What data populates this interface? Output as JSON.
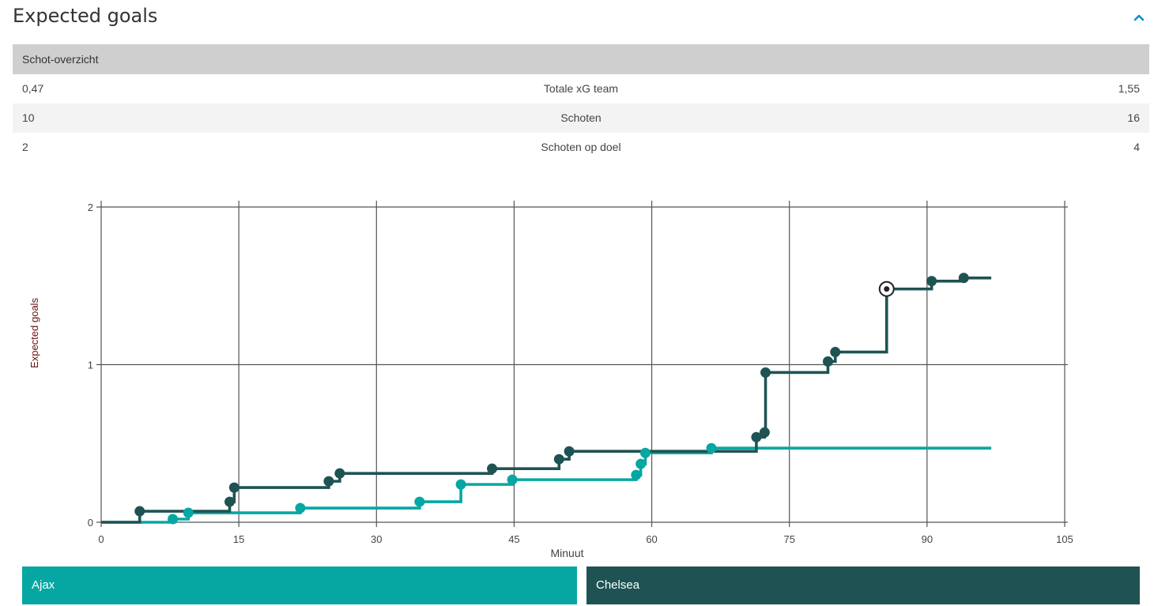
{
  "panel": {
    "title": "Expected goals",
    "collapse_icon": "chevron-up-icon"
  },
  "table": {
    "header": "Schot-overzicht",
    "rows": [
      {
        "left": "0,47",
        "label": "Totale xG team",
        "right": "1,55"
      },
      {
        "left": "10",
        "label": "Schoten",
        "right": "16"
      },
      {
        "left": "2",
        "label": "Schoten op doel",
        "right": "4"
      }
    ]
  },
  "colors": {
    "ajax": "#06a7a3",
    "chelsea": "#1f5353",
    "grid": "#555555",
    "header_bg": "#cfcfcf"
  },
  "chart_data": {
    "type": "line",
    "xlabel": "Minuut",
    "ylabel": "Expected goals",
    "xlim": [
      0,
      105
    ],
    "ylim": [
      0,
      2
    ],
    "xticks": [
      0,
      15,
      30,
      45,
      60,
      75,
      90,
      105
    ],
    "yticks": [
      0,
      1,
      2
    ],
    "grid": true,
    "series": [
      {
        "name": "Ajax",
        "color": "#06a7a3",
        "start": [
          0,
          0
        ],
        "end_x": 97,
        "points": [
          [
            7.8,
            0.02
          ],
          [
            9.5,
            0.06
          ],
          [
            21.7,
            0.09
          ],
          [
            34.7,
            0.13
          ],
          [
            39.2,
            0.24
          ],
          [
            44.8,
            0.27
          ],
          [
            58.3,
            0.3
          ],
          [
            58.8,
            0.37
          ],
          [
            59.3,
            0.44
          ],
          [
            66.5,
            0.47
          ]
        ]
      },
      {
        "name": "Chelsea",
        "color": "#1f5353",
        "start": [
          0,
          0
        ],
        "end_x": 97,
        "points": [
          [
            4.2,
            0.07
          ],
          [
            14.0,
            0.13
          ],
          [
            14.5,
            0.22
          ],
          [
            24.8,
            0.26
          ],
          [
            26.0,
            0.31
          ],
          [
            42.6,
            0.34
          ],
          [
            49.9,
            0.4
          ],
          [
            51.0,
            0.45
          ],
          [
            71.4,
            0.54
          ],
          [
            72.3,
            0.57
          ],
          [
            72.4,
            0.95
          ],
          [
            79.2,
            1.02
          ],
          [
            80.0,
            1.08
          ],
          [
            85.6,
            1.48
          ],
          [
            90.5,
            1.53
          ],
          [
            94.0,
            1.55
          ]
        ],
        "goals_x": [
          85.6
        ]
      }
    ]
  },
  "legend": {
    "ajax": "Ajax",
    "chelsea": "Chelsea"
  }
}
